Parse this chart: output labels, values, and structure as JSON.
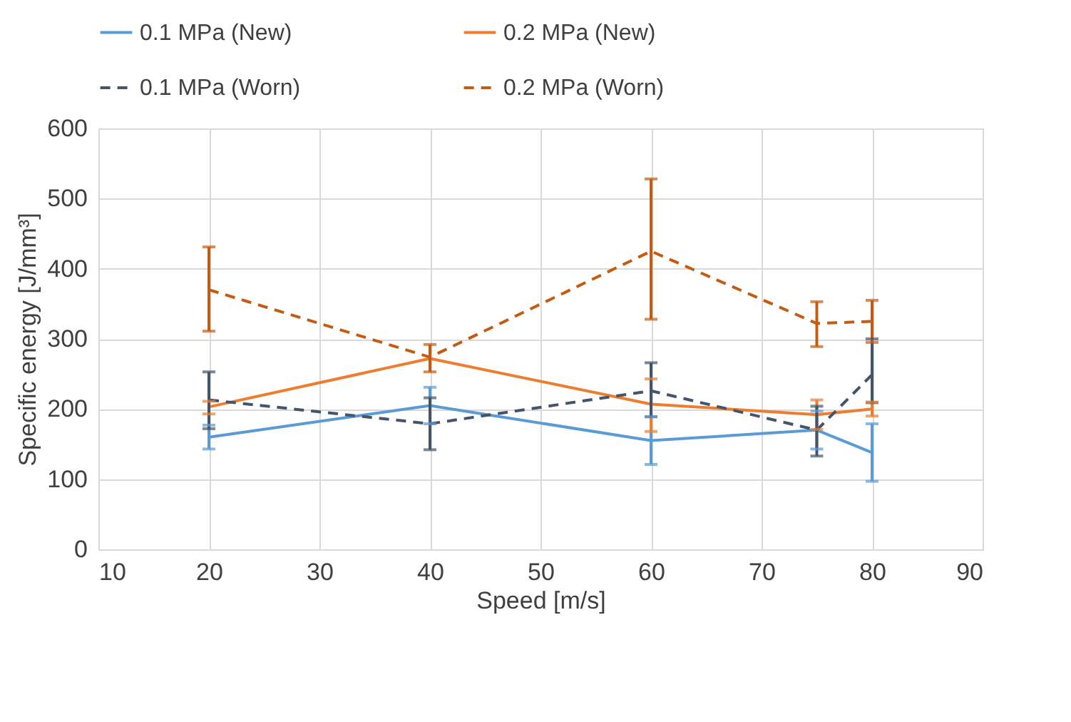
{
  "chart_data": {
    "type": "line",
    "xlabel": "Speed [m/s]",
    "ylabel": "Specific energy [J/mm³]",
    "x": [
      20,
      40,
      60,
      75,
      80
    ],
    "xlim": [
      10,
      90
    ],
    "xticks": [
      10,
      20,
      30,
      40,
      50,
      60,
      70,
      80,
      90
    ],
    "ylim": [
      0,
      600
    ],
    "yticks": [
      0,
      100,
      200,
      300,
      400,
      500,
      600
    ],
    "grid": true,
    "legend": "top",
    "series": [
      {
        "name": "0.1 MPa (New)",
        "color": "#5b9bd5",
        "line_style": "solid",
        "values": [
          160,
          205,
          155,
          170,
          138
        ],
        "errors": [
          [
            143,
            177
          ],
          [
            179,
            231
          ],
          [
            121,
            189
          ],
          [
            143,
            197
          ],
          [
            97,
            179
          ]
        ]
      },
      {
        "name": "0.2 MPa (New)",
        "color": "#ed7d31",
        "line_style": "solid",
        "values": [
          203,
          272,
          207,
          192,
          200
        ],
        "errors": [
          [
            193,
            211
          ],
          null,
          [
            168,
            243
          ],
          [
            171,
            213
          ],
          [
            190,
            210
          ]
        ]
      },
      {
        "name": "0.1 MPa (Worn)",
        "color": "#44546a",
        "line_style": "dashed",
        "values": [
          213,
          179,
          226,
          170,
          249
        ],
        "errors": [
          [
            172,
            253
          ],
          [
            142,
            216
          ],
          [
            189,
            266
          ],
          [
            133,
            204
          ],
          [
            209,
            300
          ]
        ]
      },
      {
        "name": "0.2 MPa (Worn)",
        "color": "#c55a11",
        "line_style": "dashed",
        "values": [
          370,
          274,
          425,
          322,
          325
        ],
        "errors": [
          [
            311,
            431
          ],
          [
            253,
            292
          ],
          [
            328,
            528
          ],
          [
            289,
            353
          ],
          [
            295,
            355
          ]
        ]
      }
    ]
  }
}
